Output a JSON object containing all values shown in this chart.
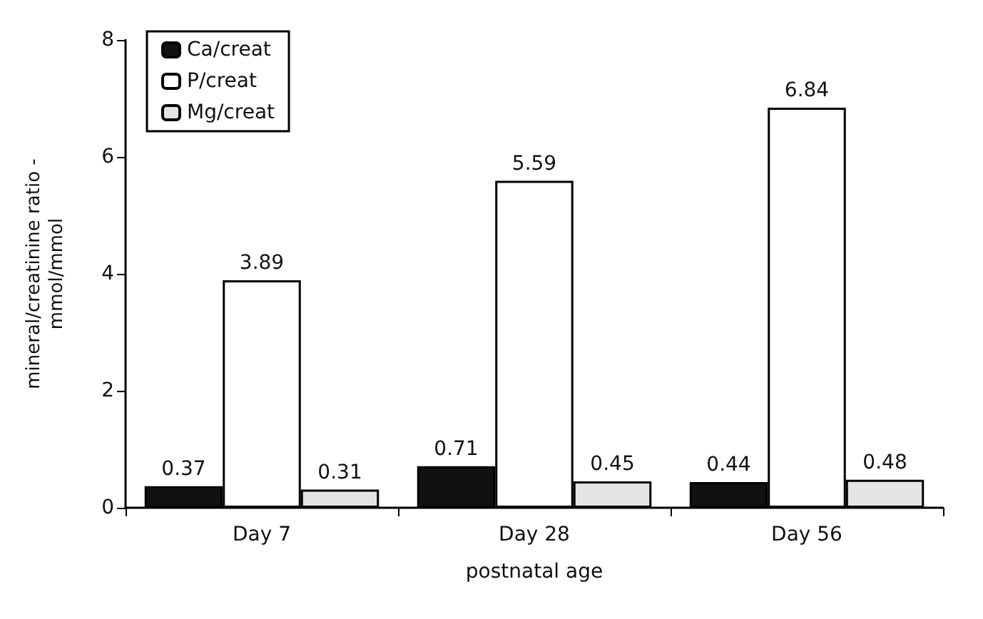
{
  "chart_data": {
    "type": "bar",
    "xlabel": "postnatal age",
    "ylabel": "mineral/creatinine ratio -\nmmol/mmol",
    "categories": [
      "Day 7",
      "Day 28",
      "Day 56"
    ],
    "series": [
      {
        "name": "Ca/creat",
        "color": "#111111",
        "values": [
          0.37,
          0.71,
          0.44
        ]
      },
      {
        "name": "P/creat",
        "color": "#ffffff",
        "values": [
          3.89,
          5.59,
          6.84
        ]
      },
      {
        "name": "Mg/creat",
        "color": "#e4e4e4",
        "values": [
          0.31,
          0.45,
          0.48
        ]
      }
    ],
    "ylim": [
      0,
      8
    ],
    "yticks": [
      0,
      2,
      4,
      6,
      8
    ],
    "data_labels": true,
    "legend": "top left",
    "grid": false
  }
}
